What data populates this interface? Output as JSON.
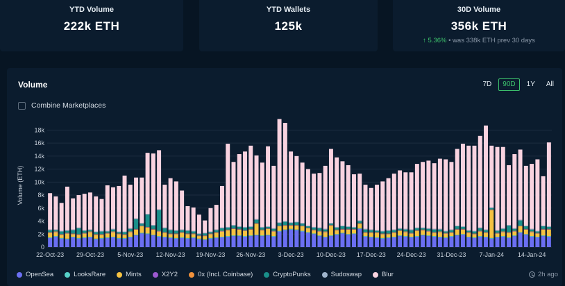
{
  "stats": [
    {
      "title": "YTD Volume",
      "value": "222k  ETH"
    },
    {
      "title": "YTD Wallets",
      "value": "125k"
    },
    {
      "title": "30D Volume",
      "value": "356k  ETH",
      "change_arrow": "↑",
      "change": "5.36%",
      "change_note": " • was 338k ETH prev 30 days"
    }
  ],
  "panel": {
    "title": "Volume",
    "ranges": [
      "7D",
      "90D",
      "1Y",
      "All"
    ],
    "active_range": "90D",
    "combine_label": "Combine Marketplaces",
    "updated": "2h ago"
  },
  "legend": [
    {
      "name": "OpenSea",
      "color": "#6b6ff2"
    },
    {
      "name": "LooksRare",
      "color": "#57d1c9"
    },
    {
      "name": "Mints",
      "color": "#f5c242"
    },
    {
      "name": "X2Y2",
      "color": "#9b59d0"
    },
    {
      "name": "0x (Incl. Coinbase)",
      "color": "#f0913c"
    },
    {
      "name": "CryptoPunks",
      "color": "#1a8f8a"
    },
    {
      "name": "Sudoswap",
      "color": "#9fb4cc"
    },
    {
      "name": "Blur",
      "color": "#f9d3e0"
    }
  ],
  "chart_data": {
    "type": "bar",
    "stacked": true,
    "ylabel": "Volume (ETH)",
    "ylim": [
      0,
      19000
    ],
    "yticks": [
      "0",
      "2k",
      "4k",
      "6k",
      "8k",
      "10k",
      "12k",
      "14k",
      "16k",
      "18k"
    ],
    "xticks": [
      "22-Oct-23",
      "29-Oct-23",
      "5-Nov-23",
      "12-Nov-23",
      "19-Nov-23",
      "26-Nov-23",
      "3-Dec-23",
      "10-Dec-23",
      "17-Dec-23",
      "24-Dec-23",
      "31-Dec-23",
      "7-Jan-24",
      "14-Jan-24"
    ],
    "xtick_index": [
      0,
      7,
      14,
      21,
      28,
      35,
      42,
      49,
      56,
      63,
      70,
      77,
      84
    ],
    "grid": true,
    "legend_position": "bottom",
    "series": [
      {
        "name": "OpenSea",
        "color": "#6b6ff2",
        "values": [
          1400,
          1600,
          1300,
          1200,
          1500,
          1300,
          1400,
          1500,
          1200,
          1300,
          1400,
          1500,
          1300,
          1300,
          1500,
          1800,
          2100,
          2000,
          1800,
          1600,
          1500,
          1400,
          1300,
          1400,
          1300,
          1400,
          1200,
          1100,
          1300,
          1400,
          1500,
          1600,
          1700,
          1700,
          1600,
          1700,
          1800,
          1700,
          1800,
          1600,
          2400,
          2600,
          2700,
          2600,
          2400,
          2200,
          2000,
          1700,
          1500,
          1700,
          1900,
          2100,
          1900,
          2000,
          2800,
          1600,
          1500,
          1400,
          1300,
          1400,
          1500,
          1700,
          1600,
          1500,
          1600,
          1800,
          1700,
          1600,
          1500,
          1400,
          1600,
          1800,
          1900,
          1500,
          1400,
          1600,
          1500,
          1300,
          1500,
          1600,
          1400,
          1700,
          2200,
          1900,
          1600,
          1500,
          1700,
          1600
        ]
      },
      {
        "name": "LooksRare",
        "color": "#57d1c9",
        "values": [
          100,
          100,
          100,
          100,
          100,
          100,
          100,
          100,
          100,
          100,
          100,
          100,
          100,
          100,
          100,
          100,
          100,
          100,
          100,
          100,
          100,
          100,
          100,
          100,
          100,
          100,
          100,
          100,
          100,
          100,
          100,
          100,
          100,
          100,
          100,
          100,
          100,
          100,
          100,
          100,
          100,
          100,
          100,
          100,
          100,
          100,
          100,
          100,
          100,
          100,
          100,
          100,
          100,
          100,
          100,
          100,
          100,
          100,
          100,
          100,
          100,
          100,
          100,
          100,
          100,
          100,
          100,
          100,
          100,
          100,
          100,
          100,
          100,
          100,
          100,
          100,
          100,
          100,
          100,
          100,
          100,
          100,
          100,
          100,
          100,
          100,
          100,
          100
        ]
      },
      {
        "name": "Mints",
        "color": "#f5c242",
        "values": [
          700,
          600,
          500,
          800,
          400,
          500,
          600,
          700,
          600,
          500,
          600,
          700,
          600,
          500,
          700,
          800,
          1000,
          900,
          800,
          700,
          600,
          500,
          600,
          700,
          600,
          500,
          400,
          500,
          600,
          700,
          800,
          900,
          1000,
          900,
          800,
          900,
          1700,
          800,
          900,
          700,
          700,
          600,
          500,
          600,
          700,
          600,
          500,
          600,
          700,
          1500,
          600,
          500,
          700,
          600,
          700,
          500,
          600,
          700,
          600,
          500,
          600,
          700,
          600,
          500,
          800,
          700,
          600,
          500,
          700,
          600,
          500,
          800,
          700,
          600,
          500,
          700,
          600,
          4300,
          500,
          600,
          700,
          600,
          900,
          700,
          600,
          500,
          900,
          1000
        ]
      },
      {
        "name": "X2Y2",
        "color": "#9b59d0",
        "values": [
          50,
          50,
          50,
          50,
          50,
          50,
          50,
          50,
          50,
          50,
          50,
          50,
          50,
          50,
          50,
          50,
          50,
          50,
          50,
          50,
          50,
          50,
          50,
          50,
          50,
          50,
          50,
          50,
          50,
          50,
          50,
          50,
          50,
          50,
          50,
          50,
          50,
          50,
          50,
          50,
          50,
          50,
          50,
          50,
          50,
          50,
          50,
          50,
          50,
          50,
          50,
          50,
          50,
          50,
          50,
          50,
          50,
          50,
          50,
          50,
          50,
          50,
          50,
          50,
          50,
          50,
          50,
          50,
          50,
          50,
          50,
          50,
          50,
          50,
          50,
          50,
          50,
          50,
          50,
          50,
          50,
          50,
          50,
          50,
          50,
          50,
          50,
          50
        ]
      },
      {
        "name": "0x (Incl. Coinbase)",
        "color": "#f0913c",
        "values": [
          50,
          50,
          50,
          50,
          50,
          50,
          50,
          50,
          50,
          50,
          50,
          50,
          50,
          50,
          50,
          50,
          50,
          50,
          50,
          50,
          50,
          50,
          50,
          50,
          50,
          50,
          50,
          50,
          50,
          50,
          50,
          50,
          50,
          50,
          50,
          50,
          50,
          50,
          50,
          50,
          50,
          50,
          50,
          50,
          50,
          50,
          50,
          50,
          50,
          50,
          50,
          50,
          50,
          50,
          50,
          50,
          50,
          50,
          50,
          50,
          50,
          50,
          50,
          50,
          50,
          50,
          50,
          50,
          50,
          50,
          50,
          50,
          50,
          50,
          50,
          50,
          50,
          50,
          50,
          50,
          50,
          50,
          50,
          50,
          50,
          50,
          50,
          50
        ]
      },
      {
        "name": "CryptoPunks",
        "color": "#1a8f8a",
        "values": [
          300,
          200,
          400,
          300,
          500,
          900,
          300,
          200,
          300,
          400,
          200,
          300,
          200,
          300,
          400,
          1500,
          300,
          1900,
          500,
          3200,
          600,
          500,
          400,
          300,
          400,
          300,
          200,
          300,
          200,
          300,
          400,
          300,
          400,
          300,
          400,
          300,
          500,
          300,
          200,
          300,
          400,
          500,
          300,
          400,
          300,
          200,
          300,
          400,
          300,
          200,
          300,
          400,
          300,
          200,
          300,
          400,
          300,
          200,
          300,
          400,
          300,
          200,
          300,
          400,
          300,
          200,
          300,
          400,
          300,
          200,
          300,
          400,
          300,
          200,
          300,
          400,
          300,
          200,
          300,
          400,
          1000,
          300,
          800,
          400,
          300,
          200,
          400,
          300
        ]
      },
      {
        "name": "Sudoswap",
        "color": "#9fb4cc",
        "values": [
          100,
          100,
          100,
          100,
          100,
          100,
          100,
          100,
          100,
          100,
          100,
          100,
          100,
          100,
          100,
          100,
          100,
          100,
          100,
          100,
          100,
          100,
          100,
          100,
          100,
          100,
          100,
          100,
          100,
          100,
          100,
          100,
          100,
          100,
          100,
          100,
          100,
          100,
          100,
          100,
          100,
          100,
          100,
          100,
          100,
          100,
          100,
          100,
          100,
          100,
          100,
          100,
          100,
          100,
          100,
          100,
          100,
          100,
          100,
          100,
          100,
          100,
          100,
          100,
          100,
          100,
          100,
          100,
          100,
          100,
          100,
          100,
          100,
          100,
          100,
          100,
          100,
          100,
          100,
          100,
          100,
          100,
          100,
          100,
          100,
          100,
          100,
          100
        ]
      },
      {
        "name": "Blur",
        "color": "#f9d3e0",
        "values": [
          5600,
          5100,
          4300,
          6700,
          4800,
          5000,
          5600,
          5700,
          5400,
          4900,
          7000,
          6400,
          7000,
          8600,
          6700,
          6300,
          7000,
          9400,
          11000,
          9100,
          6600,
          7900,
          7500,
          6000,
          3700,
          3600,
          2900,
          1900,
          3600,
          3800,
          6400,
          12800,
          9700,
          11100,
          11600,
          12400,
          9800,
          9900,
          12300,
          9600,
          15900,
          15100,
          10900,
          10100,
          9300,
          8700,
          8200,
          8400,
          9700,
          11400,
          10700,
          9900,
          9400,
          8100,
          7200,
          6800,
          6400,
          7000,
          7600,
          8000,
          8600,
          8900,
          8700,
          8800,
          9800,
          10100,
          10400,
          10100,
          10800,
          11000,
          10400,
          11800,
          12700,
          13000,
          13100,
          14100,
          16000,
          9500,
          12800,
          12500,
          9200,
          11400,
          10800,
          9200,
          10000,
          11000,
          7600,
          12900
        ]
      }
    ]
  }
}
